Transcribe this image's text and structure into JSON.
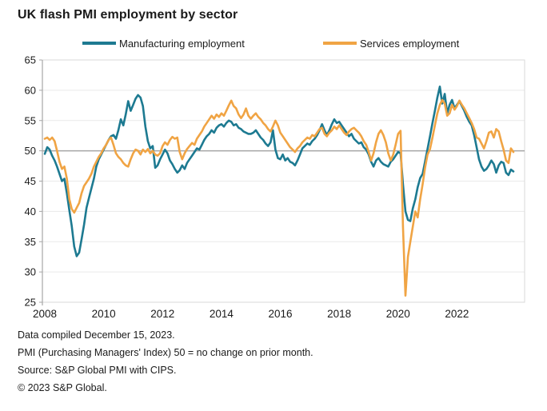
{
  "title": "UK flash PMI employment by sector",
  "legend": [
    {
      "label": "Manufacturing employment",
      "color": "#1d7a91"
    },
    {
      "label": "Services employment",
      "color": "#f0a444"
    }
  ],
  "footer": {
    "line1": "Data compiled December 15, 2023.",
    "line2": "PMI (Purchasing Managers' Index) 50 = no change on prior month.",
    "line3": "Source: S&P Global PMI with CIPS.",
    "line4": "© 2023 S&P Global."
  },
  "chart_data": {
    "type": "line",
    "title": "UK flash PMI employment by sector",
    "frequency": "monthly",
    "x_start": "2008-01",
    "x_end": "2023-12",
    "ylim": [
      25,
      65
    ],
    "y_ticks": [
      25,
      30,
      35,
      40,
      45,
      50,
      55,
      60,
      65
    ],
    "x_ticks": [
      2008,
      2010,
      2012,
      2014,
      2016,
      2018,
      2020,
      2022
    ],
    "reference_line": 50,
    "grid": "horizontal",
    "legend_position": "top",
    "series": [
      {
        "name": "Manufacturing employment",
        "color": "#1d7a91",
        "values": [
          49.5,
          50.6,
          50.2,
          49.2,
          48.4,
          47.4,
          46.2,
          45.0,
          45.4,
          43.0,
          40.2,
          37.6,
          34.2,
          32.6,
          33.2,
          35.4,
          37.8,
          40.6,
          42.2,
          43.8,
          45.4,
          47.4,
          48.6,
          49.4,
          50.2,
          51.0,
          51.8,
          52.4,
          52.6,
          52.0,
          53.4,
          55.2,
          54.2,
          56.0,
          58.2,
          56.6,
          57.6,
          58.6,
          59.2,
          58.8,
          57.4,
          54.0,
          51.6,
          50.4,
          50.8,
          47.2,
          47.6,
          48.6,
          49.4,
          50.2,
          49.6,
          48.4,
          47.8,
          47.0,
          46.4,
          46.8,
          47.6,
          47.0,
          48.0,
          48.6,
          49.2,
          49.8,
          50.4,
          50.2,
          51.0,
          51.8,
          52.4,
          52.8,
          53.4,
          53.0,
          53.8,
          54.2,
          54.4,
          54.0,
          54.6,
          55.0,
          54.8,
          54.2,
          54.4,
          53.8,
          53.6,
          53.2,
          53.0,
          52.8,
          52.8,
          53.0,
          53.4,
          52.8,
          52.2,
          51.8,
          51.2,
          50.8,
          51.4,
          53.4,
          50.2,
          48.8,
          48.6,
          49.4,
          48.4,
          48.8,
          48.2,
          48.0,
          47.6,
          48.4,
          49.4,
          50.4,
          50.8,
          51.2,
          51.0,
          51.6,
          52.0,
          52.6,
          53.4,
          54.4,
          53.4,
          52.6,
          53.4,
          54.4,
          55.2,
          54.6,
          54.8,
          54.2,
          53.6,
          53.0,
          52.4,
          52.8,
          52.0,
          51.6,
          51.2,
          51.4,
          50.6,
          50.2,
          49.4,
          48.2,
          47.4,
          48.4,
          48.8,
          48.2,
          47.8,
          47.6,
          47.4,
          48.2,
          48.6,
          49.2,
          49.8,
          49.6,
          44.5,
          40.0,
          38.6,
          38.4,
          40.5,
          42.0,
          44.0,
          45.5,
          46.2,
          48.2,
          50.3,
          52.4,
          54.6,
          56.6,
          58.8,
          60.6,
          57.8,
          59.4,
          56.2,
          57.6,
          58.4,
          57.0,
          57.6,
          58.2,
          57.4,
          56.6,
          55.6,
          54.8,
          54.2,
          52.6,
          50.6,
          48.6,
          47.4,
          46.7,
          47.0,
          47.6,
          48.4,
          47.8,
          46.4,
          47.6,
          48.2,
          48.0,
          46.4,
          46.0,
          46.9,
          46.6
        ]
      },
      {
        "name": "Services employment",
        "color": "#f0a444",
        "values": [
          52.0,
          52.2,
          51.8,
          52.2,
          51.6,
          50.0,
          48.2,
          47.0,
          47.4,
          45.4,
          42.0,
          40.4,
          39.8,
          40.6,
          41.4,
          43.0,
          44.2,
          44.8,
          45.4,
          46.2,
          47.4,
          48.2,
          49.0,
          49.6,
          50.4,
          51.0,
          51.8,
          52.2,
          51.0,
          49.6,
          49.0,
          48.6,
          48.0,
          47.6,
          47.4,
          48.6,
          49.6,
          50.2,
          50.0,
          49.4,
          50.2,
          49.8,
          50.3,
          49.6,
          50.0,
          49.4,
          49.2,
          49.6,
          50.8,
          51.4,
          51.0,
          51.8,
          52.3,
          52.0,
          52.2,
          49.8,
          48.6,
          49.6,
          50.3,
          50.8,
          51.3,
          51.0,
          52.0,
          52.6,
          53.2,
          54.0,
          54.6,
          55.2,
          55.8,
          55.3,
          56.0,
          55.6,
          56.2,
          55.8,
          56.6,
          57.5,
          58.3,
          57.4,
          57.0,
          56.0,
          55.4,
          56.0,
          57.0,
          55.8,
          55.3,
          55.8,
          56.2,
          55.6,
          55.2,
          54.6,
          54.2,
          53.6,
          53.2,
          54.0,
          55.0,
          54.2,
          53.0,
          52.4,
          51.8,
          51.2,
          50.6,
          50.2,
          49.8,
          50.4,
          50.8,
          51.4,
          51.8,
          52.2,
          52.0,
          52.6,
          52.4,
          53.0,
          53.6,
          53.8,
          52.8,
          52.4,
          53.0,
          53.4,
          54.0,
          53.6,
          54.2,
          53.6,
          53.0,
          52.6,
          53.2,
          53.6,
          53.8,
          53.4,
          53.0,
          52.4,
          51.6,
          51.0,
          49.8,
          48.4,
          49.6,
          51.4,
          52.8,
          53.4,
          52.6,
          51.4,
          49.6,
          48.4,
          49.4,
          51.0,
          52.8,
          53.3,
          37.5,
          26.1,
          32.5,
          35.0,
          37.5,
          40.0,
          39.0,
          42.0,
          44.5,
          47.2,
          49.4,
          50.3,
          52.2,
          54.2,
          56.2,
          57.6,
          58.4,
          57.8,
          55.8,
          56.2,
          57.6,
          56.8,
          57.4,
          58.3,
          57.6,
          57.0,
          56.2,
          55.4,
          54.6,
          53.6,
          52.2,
          52.0,
          51.2,
          50.4,
          51.6,
          53.0,
          53.2,
          52.2,
          53.6,
          53.2,
          51.6,
          50.2,
          48.4,
          48.0,
          50.4,
          49.8
        ]
      }
    ]
  },
  "colors": {
    "manufacturing": "#1d7a91",
    "services": "#f0a444",
    "reference_line": "#a6a6a6",
    "gridline": "#e9e9e9",
    "plot_border": "#d9d9d9",
    "text": "#1a1a1a"
  }
}
